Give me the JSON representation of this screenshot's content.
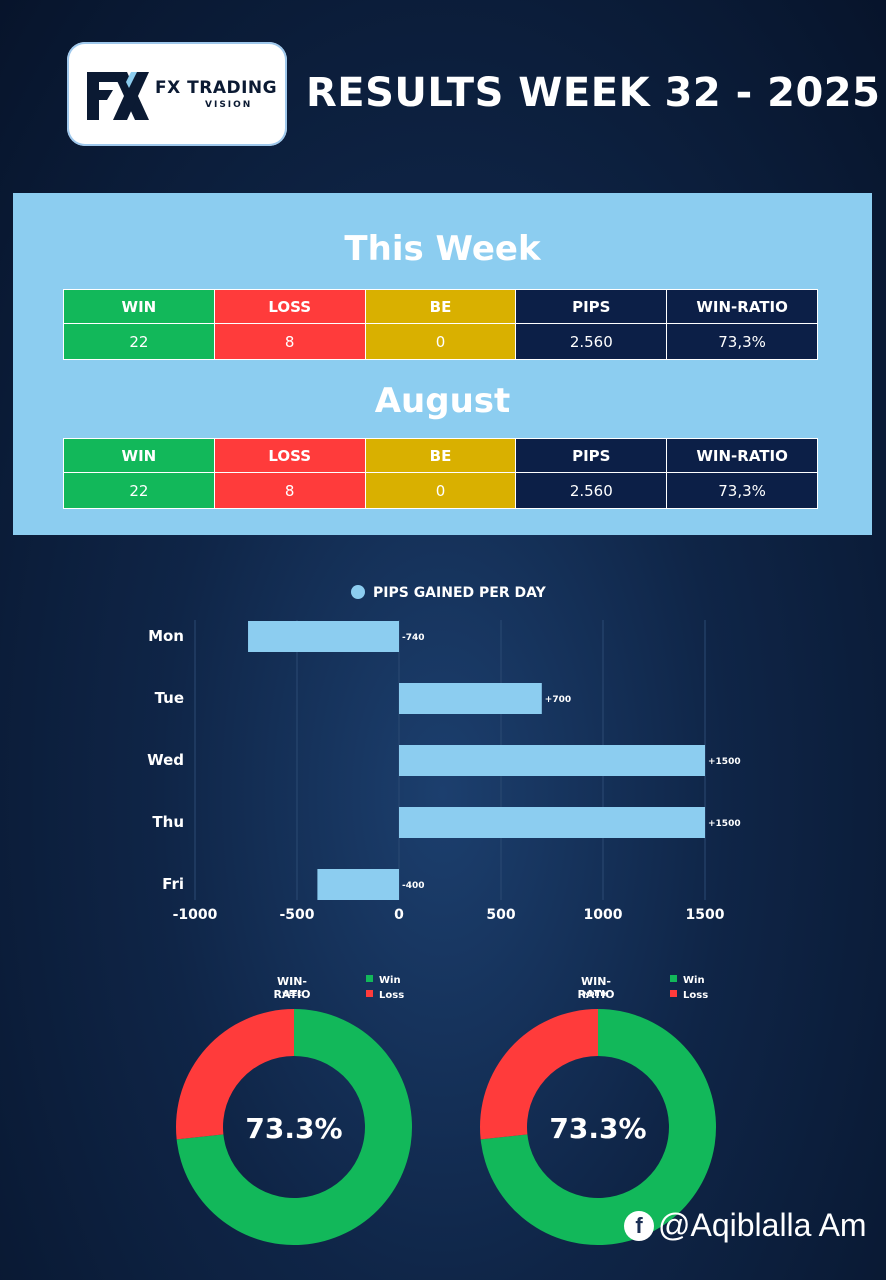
{
  "header": {
    "logo_line1": "FX TRADING",
    "logo_line2": "VISION",
    "title": "RESULTS WEEK 32 - 2025"
  },
  "week_table": {
    "title": "This Week",
    "headers": [
      "WIN",
      "LOSS",
      "BE",
      "PIPS",
      "WIN-RATIO"
    ],
    "values": [
      "22",
      "8",
      "0",
      "2.560",
      "73,3%"
    ]
  },
  "month_table": {
    "title": "August",
    "headers": [
      "WIN",
      "LOSS",
      "BE",
      "PIPS",
      "WIN-RATIO"
    ],
    "values": [
      "22",
      "8",
      "0",
      "2.560",
      "73,3%"
    ]
  },
  "colors": {
    "win": "#12b85a",
    "loss": "#ff3b3b",
    "be": "#d9b000",
    "navy": "#0c1f47",
    "bar": "#8ccdf0",
    "panel": "#8ccdf0"
  },
  "chart_data": [
    {
      "type": "bar",
      "orientation": "horizontal",
      "legend": "PIPS GAINED PER DAY",
      "legend_placement": "top-center",
      "categories": [
        "Mon",
        "Tue",
        "Wed",
        "Thu",
        "Fri"
      ],
      "values": [
        -740,
        700,
        1500,
        1500,
        -400
      ],
      "data_labels": [
        "-740",
        "+700",
        "+1500",
        "+1500",
        "-400"
      ],
      "xlim": [
        -1000,
        1500
      ],
      "xticks": [
        "-1000",
        "-500",
        "0",
        "500",
        "1000",
        "1500"
      ],
      "grid": true
    },
    {
      "type": "pie",
      "donut": true,
      "title": "WIN-RATIO",
      "subtitle": "WEEK",
      "labels": [
        "Win",
        "Loss"
      ],
      "values": [
        22,
        8
      ],
      "center_label": "73.3%"
    },
    {
      "type": "pie",
      "donut": true,
      "title": "WIN-RATIO",
      "subtitle": "MONTH",
      "labels": [
        "Win",
        "Loss"
      ],
      "values": [
        22,
        8
      ],
      "center_label": "73.3%"
    }
  ],
  "watermark": "@Aqiblalla Am"
}
